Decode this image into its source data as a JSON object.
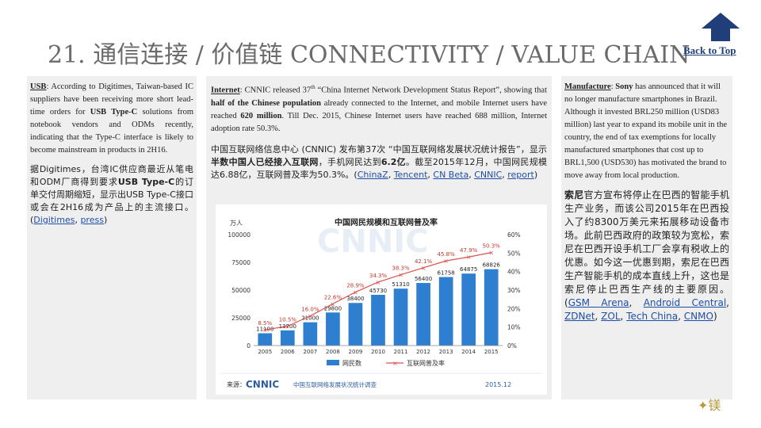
{
  "header": {
    "title": "21. 通信连接 / 价值链 CONNECTIVITY / VALUE CHAIN",
    "back_to_top": "Back to Top"
  },
  "left": {
    "en_label": "USB",
    "en_text_1": ": According to Digitimes, Taiwan-based IC suppliers have been receiving more short lead-time orders for ",
    "en_bold_1": "USB Type-C",
    "en_text_2": " solutions from notebook vendors and ODMs recently, indicating that the Type-C interface is likely to become mainstream in products in 2H16.",
    "cn_text_1": "据Digitimes，台湾IC供应商最近从笔电和ODM厂商得到要求",
    "cn_bold": "USB Type-C",
    "cn_text_2": "的订单交付周期缩短，显示出USB Type-C接口或会在2H16成为产品上的主流接口。(",
    "links": [
      "Digitimes",
      "press"
    ],
    "cn_end": ")"
  },
  "middle": {
    "en_label": "Internet",
    "en_text_1": ": CNNIC released 37",
    "en_sup": "th",
    "en_text_2": " “China Internet Network Development Status Report”, showing that ",
    "en_bold_1": "half of the Chinese population",
    "en_text_3": " already connected to the Internet, and mobile Internet users have reached ",
    "en_bold_2": "620 million",
    "en_text_4": ". Till Dec. 2015, Chinese Internet users have reached 688 million, Internet adoption rate 50.3%.",
    "cn_text_1": "中国互联网络信息中心 (CNNIC) 发布第37次 “中国互联网络发展状况统计报告”，显示",
    "cn_bold_1": "半数中国人已经接入互联网",
    "cn_text_2": "，手机网民达到",
    "cn_bold_2": "6.2亿",
    "cn_text_3": "。截至2015年12月，中国网民规模达6.88亿，互联网普及率为50.3%。(",
    "links": [
      "ChinaZ",
      "Tencent",
      "CN Beta",
      "CNNIC",
      "report"
    ],
    "cn_end": ")"
  },
  "right": {
    "en_label": "Manufacture",
    "en_text_1": ": ",
    "en_bold_1": "Sony",
    "en_text_2": " has announced that it will no longer manufacture smartphones in Brazil. Although it invested BRL250 million (USD83 million) last year to expand its mobile unit in the country, the end of tax exemptions for locally manufactured smartphones that cost up to BRL1,500 (USD530) has motivated the brand to move away from local production.",
    "cn_bold": "索尼",
    "cn_text": "官方宣布将停止在巴西的智能手机生产业务，而该公司2015年在巴西投入了约8300万美元来拓展移动设备市场。此前巴西政府的政策较为宽松，索尼在巴西开设手机工厂会享有税收上的优惠。如今这一优惠到期，索尼在巴西生产智能手机的成本直线上升，这也是索尼停止巴西生产线的主要原因。(",
    "links": [
      "GSM Arena",
      "Android Central",
      "ZDNet",
      "ZOL",
      "Tech China",
      "CNMO"
    ],
    "cn_end": ")"
  },
  "chart_data": {
    "type": "bar",
    "title": "中国网民规模和互联网普及率",
    "watermark": "CNNIC",
    "ylabel": "万人",
    "categories": [
      "2005",
      "2006",
      "2007",
      "2008",
      "2009",
      "2010",
      "2011",
      "2012",
      "2013",
      "2014",
      "2015"
    ],
    "series": [
      {
        "name": "网民数",
        "values": [
          11100,
          13700,
          21000,
          29800,
          38400,
          45730,
          51310,
          56400,
          61758,
          64875,
          68826
        ]
      },
      {
        "name": "互联网普及率",
        "values": [
          8.5,
          10.5,
          16.0,
          22.6,
          28.9,
          34.3,
          38.3,
          42.1,
          45.8,
          47.9,
          50.3
        ]
      }
    ],
    "value_labels": [
      "11100",
      "13700",
      "21000",
      "29800",
      "38400",
      "45730",
      "51310",
      "56400",
      "61758",
      "64875",
      "68826"
    ],
    "rate_labels": [
      "8.5%",
      "10.5%",
      "16.0%",
      "22.6%",
      "28.9%",
      "34.3%",
      "38.3%",
      "42.1%",
      "45.8%",
      "47.9%",
      "50.3%"
    ],
    "ylim": [
      0,
      100000
    ],
    "y_ticks": [
      "0",
      "25000",
      "50000",
      "75000",
      "100000"
    ],
    "y2lim": [
      0,
      60
    ],
    "y2_ticks": [
      "0%",
      "10%",
      "20%",
      "30%",
      "40%",
      "50%",
      "60%"
    ],
    "source_prefix": "来源：",
    "source_logo": "CNNIC",
    "source_text": "中国互联网络发展状况统计调查",
    "date": "2015.12",
    "colors": {
      "bar": "#2f7fd0",
      "line": "#d9534f",
      "label": "#c0392b"
    }
  }
}
